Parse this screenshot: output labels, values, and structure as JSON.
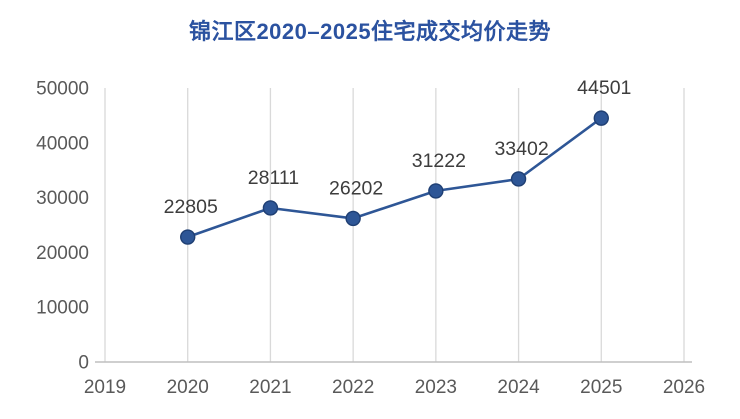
{
  "chart_data": {
    "type": "line",
    "title": "锦江区2020–2025住宅成交均价走势",
    "x": [
      2020,
      2021,
      2022,
      2023,
      2024,
      2025
    ],
    "values": [
      22805,
      28111,
      26202,
      31222,
      33402,
      44501
    ],
    "xlabel": "",
    "ylabel": "",
    "xlim": [
      2019,
      2026
    ],
    "ylim": [
      0,
      50000
    ],
    "x_ticks": [
      2019,
      2020,
      2021,
      2022,
      2023,
      2024,
      2025,
      2026
    ],
    "y_ticks": [
      0,
      10000,
      20000,
      30000,
      40000,
      50000
    ],
    "grid": "vertical-only",
    "legend": "none",
    "data_labels_shown": true,
    "colors": {
      "line": "#2e5696",
      "marker_fill": "#2e5696",
      "marker_stroke": "#1f3f73",
      "title": "#2b52a0",
      "tick_label": "#595959",
      "data_label": "#3d3d3d",
      "gridline": "#d9d9d9",
      "axis_line": "#bfbfbf",
      "background": "#ffffff"
    }
  }
}
